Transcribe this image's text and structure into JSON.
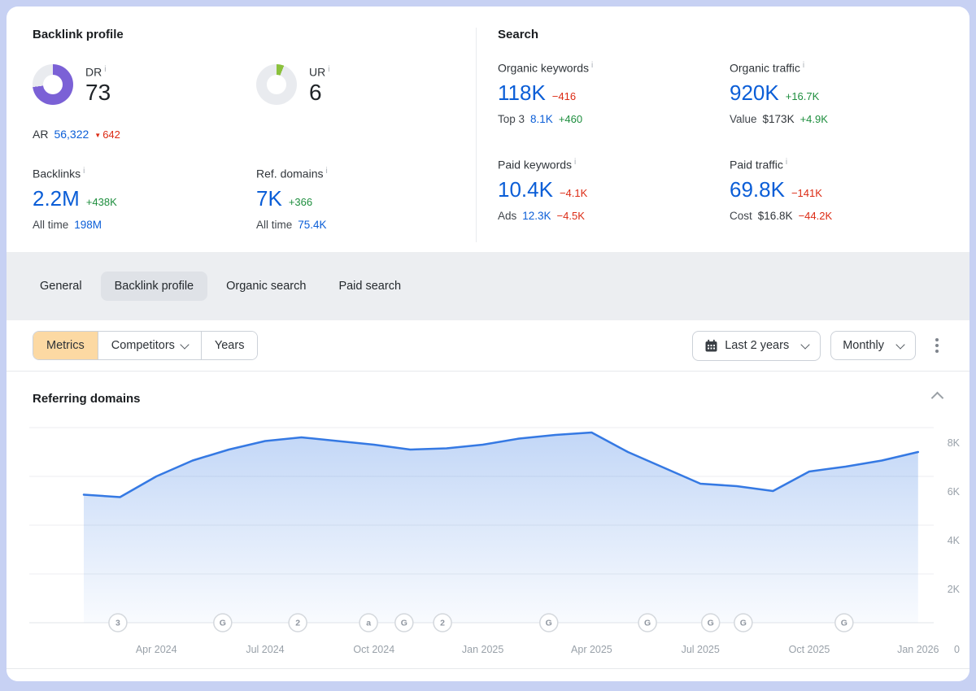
{
  "icons": {
    "info": "i",
    "triangle_down": "▼"
  },
  "colors": {
    "blue": "#0b5ed7",
    "green": "#1e8e3e",
    "red": "#dc2b14",
    "purple": "#7b61d6",
    "lime": "#8bc13c",
    "chart_line": "#3579e3",
    "metrics_button_bg": "#fcd9a3",
    "tab_band_bg": "#eceef1",
    "active_tab_bg": "#dfe2e7"
  },
  "backlink_profile": {
    "title": "Backlink profile",
    "dr": {
      "label": "DR",
      "value": "73",
      "percent": 73,
      "color": "#7b61d6"
    },
    "ur": {
      "label": "UR",
      "value": "6",
      "percent": 6,
      "color": "#8bc13c"
    },
    "ar": {
      "label": "AR",
      "value": "56,322",
      "delta": "642"
    },
    "backlinks": {
      "label": "Backlinks",
      "value": "2.2M",
      "delta": "+438K",
      "all_time_label": "All time",
      "all_time_value": "198M"
    },
    "ref_domains": {
      "label": "Ref. domains",
      "value": "7K",
      "delta": "+366",
      "all_time_label": "All time",
      "all_time_value": "75.4K"
    }
  },
  "search": {
    "title": "Search",
    "organic_keywords": {
      "label": "Organic keywords",
      "value": "118K",
      "delta": "−416",
      "sub_label": "Top 3",
      "sub_value": "8.1K",
      "sub_delta": "+460"
    },
    "organic_traffic": {
      "label": "Organic traffic",
      "value": "920K",
      "delta": "+16.7K",
      "sub_label": "Value",
      "sub_value": "$173K",
      "sub_delta": "+4.9K"
    },
    "paid_keywords": {
      "label": "Paid keywords",
      "value": "10.4K",
      "delta": "−4.1K",
      "sub_label": "Ads",
      "sub_value": "12.3K",
      "sub_delta": "−4.5K"
    },
    "paid_traffic": {
      "label": "Paid traffic",
      "value": "69.8K",
      "delta": "−141K",
      "sub_label": "Cost",
      "sub_value": "$16.8K",
      "sub_delta": "−44.2K"
    }
  },
  "tabs": {
    "items": [
      {
        "label": "General",
        "active": false
      },
      {
        "label": "Backlink profile",
        "active": true
      },
      {
        "label": "Organic search",
        "active": false
      },
      {
        "label": "Paid search",
        "active": false
      }
    ]
  },
  "toolbar": {
    "metrics": "Metrics",
    "competitors": "Competitors",
    "years": "Years",
    "date_range": "Last 2 years",
    "granularity": "Monthly"
  },
  "chart_data": {
    "type": "area",
    "title": "Referring domains",
    "x": [
      "Feb 2024",
      "Mar 2024",
      "Apr 2024",
      "May 2024",
      "Jun 2024",
      "Jul 2024",
      "Aug 2024",
      "Sep 2024",
      "Oct 2024",
      "Nov 2024",
      "Dec 2024",
      "Jan 2025",
      "Feb 2025",
      "Mar 2025",
      "Apr 2025",
      "May 2025",
      "Jun 2025",
      "Jul 2025",
      "Aug 2025",
      "Sep 2025",
      "Oct 2025",
      "Nov 2025",
      "Dec 2025",
      "Jan 2026"
    ],
    "values": [
      5250,
      5150,
      6000,
      6650,
      7100,
      7450,
      7600,
      7450,
      7300,
      7100,
      7150,
      7300,
      7550,
      7700,
      7800,
      7000,
      6350,
      5700,
      5600,
      5400,
      6200,
      6400,
      6650,
      7000
    ],
    "ylim": [
      0,
      8500
    ],
    "y_ticks": [
      "2K",
      "4K",
      "6K",
      "8K"
    ],
    "y_zero_label": "0",
    "x_tick_labels": [
      "Apr 2024",
      "Jul 2024",
      "Oct 2024",
      "Jan 2025",
      "Apr 2025",
      "Jul 2025",
      "Oct 2025",
      "Jan 2026"
    ],
    "grid": true,
    "legend": "none",
    "line_color": "#3579e3",
    "markers": [
      {
        "label": "3",
        "month_offset": 0.94
      },
      {
        "label": "G",
        "month_offset": 3.83
      },
      {
        "label": "2",
        "month_offset": 5.9
      },
      {
        "label": "a",
        "month_offset": 7.85
      },
      {
        "label": "G",
        "month_offset": 8.83
      },
      {
        "label": "2",
        "month_offset": 9.89
      },
      {
        "label": "G",
        "month_offset": 12.82
      },
      {
        "label": "G",
        "month_offset": 15.54
      },
      {
        "label": "G",
        "month_offset": 17.28
      },
      {
        "label": "G",
        "month_offset": 18.18
      },
      {
        "label": "G",
        "month_offset": 20.96
      }
    ]
  }
}
